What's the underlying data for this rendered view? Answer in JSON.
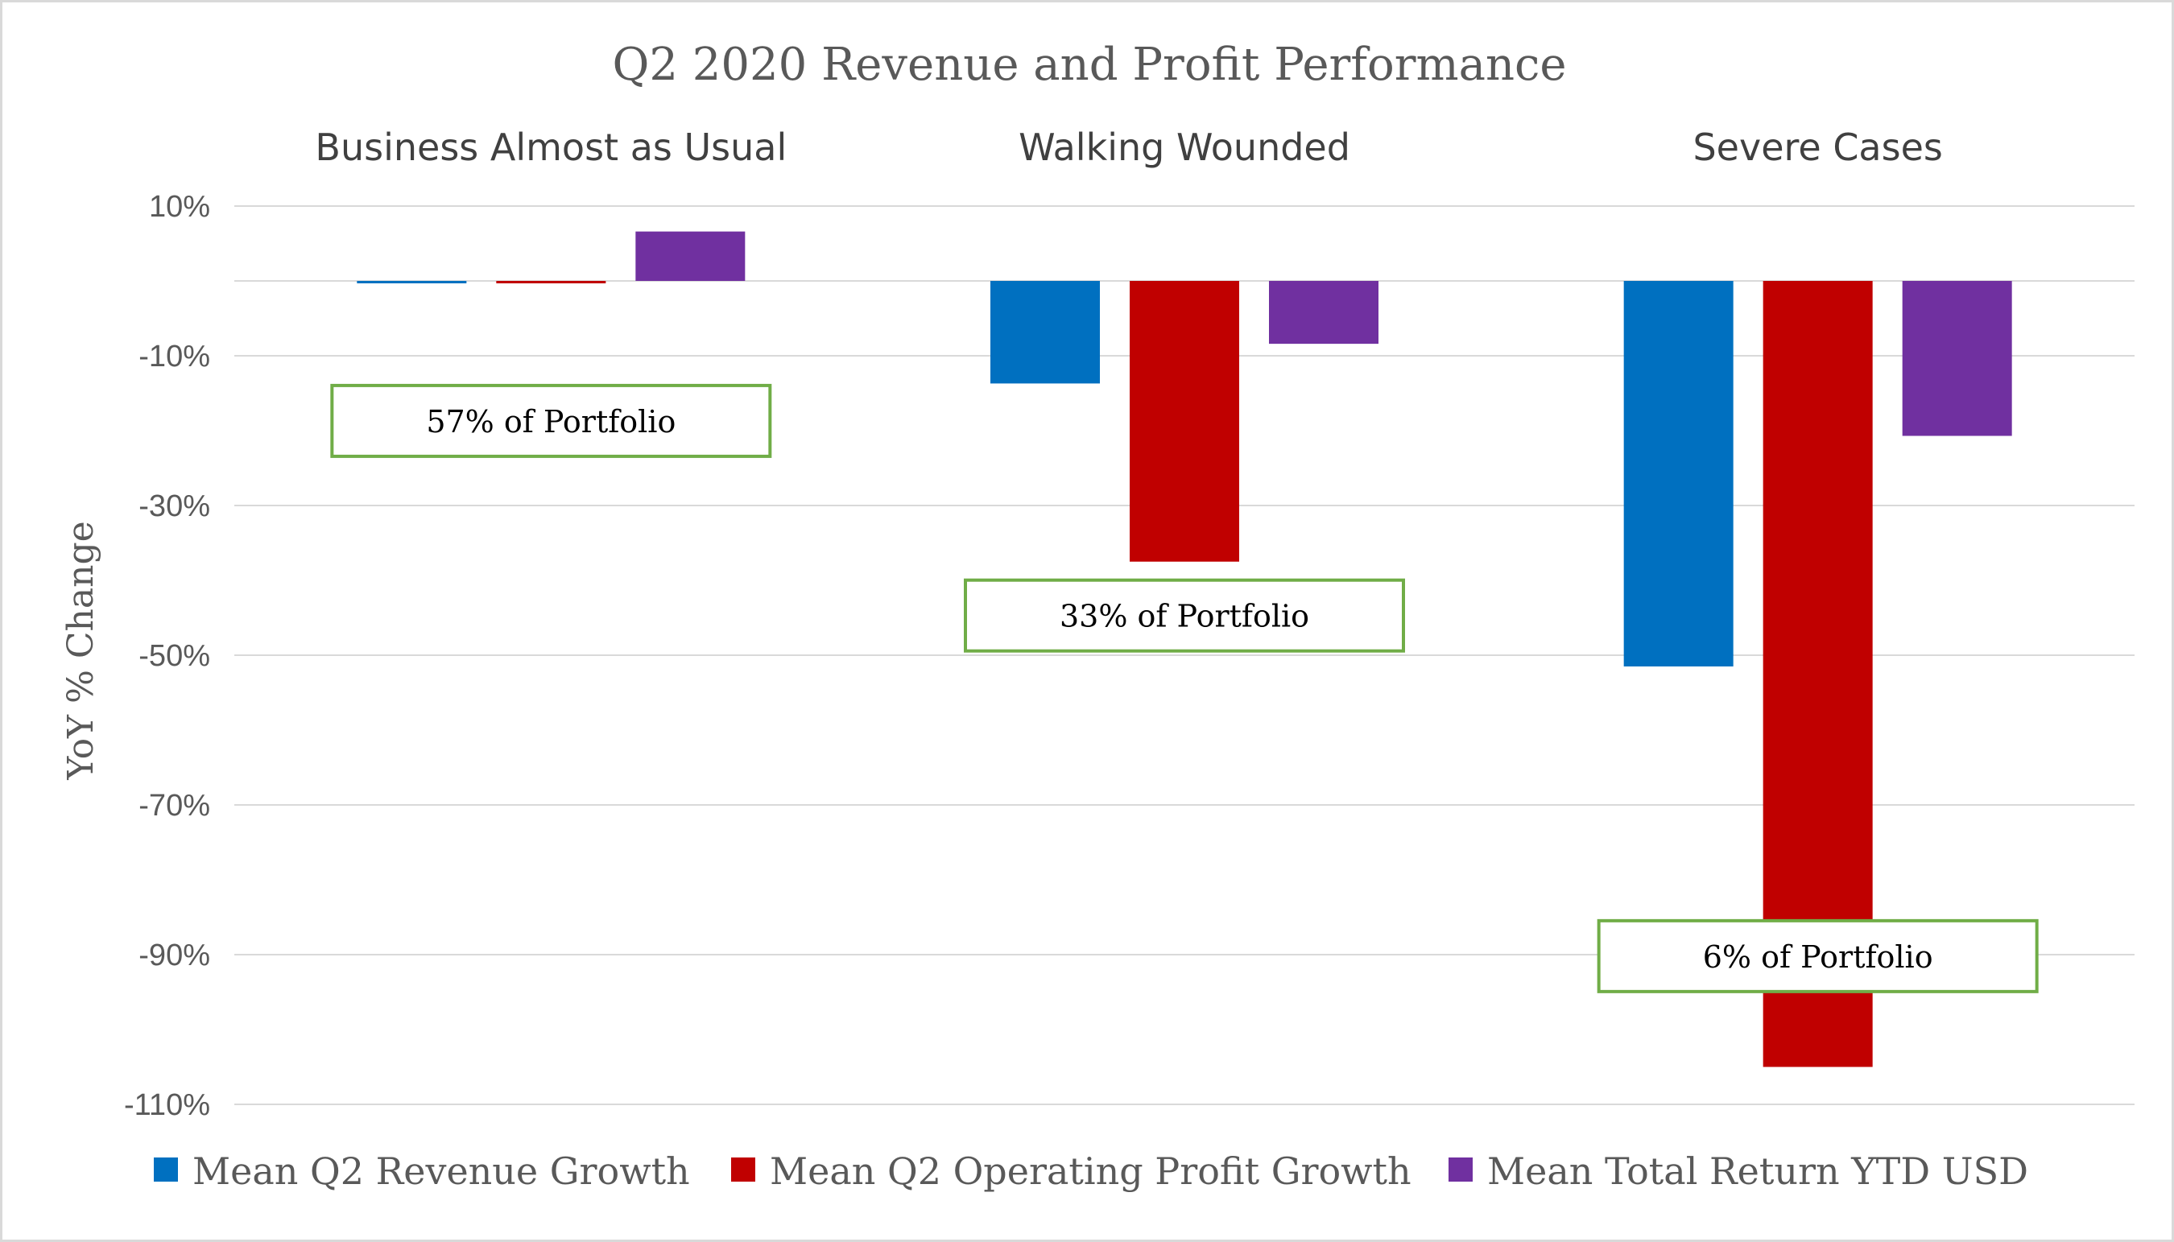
{
  "chart_data": {
    "type": "bar",
    "title": "Q2 2020 Revenue and Profit Performance",
    "ylabel": "YoY % Change",
    "xlabel": "",
    "ylim": [
      -110,
      10
    ],
    "yticks": [
      10,
      -10,
      -30,
      -50,
      -70,
      -90,
      -110
    ],
    "ytick_labels": [
      "10%",
      "-10%",
      "-30%",
      "-50%",
      "-70%",
      "-90%",
      "-110%"
    ],
    "gridlines": true,
    "categories": [
      "Business Almost as Usual",
      "Walking Wounded",
      "Severe Cases"
    ],
    "series": [
      {
        "name": "Mean Q2 Revenue Growth",
        "color": "#0070c0",
        "values": [
          -0.2,
          -13.7,
          -51.5
        ]
      },
      {
        "name": "Mean Q2 Operating Profit Growth",
        "color": "#c00000",
        "values": [
          0,
          -37.5,
          -105
        ]
      },
      {
        "name": "Mean Total Return YTD USD",
        "color": "#7030a0",
        "values": [
          6.6,
          -8.4,
          -20.7
        ]
      }
    ],
    "annotations": [
      {
        "text": "57% of Portfolio",
        "category_index": 0,
        "y_value": -18.7
      },
      {
        "text": "33% of Portfolio",
        "category_index": 1,
        "y_value": -44.7
      },
      {
        "text": "6% of Portfolio",
        "category_index": 2,
        "y_value": -90.2
      }
    ],
    "legend_position": "bottom"
  }
}
